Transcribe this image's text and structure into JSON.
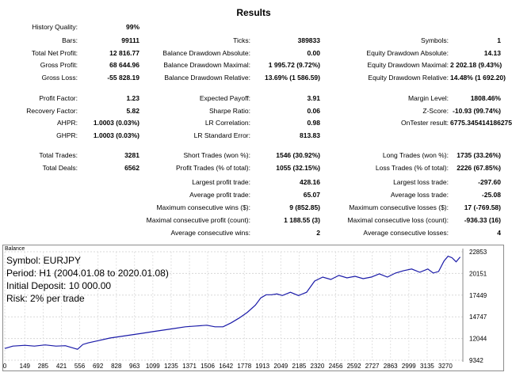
{
  "report": {
    "title": "Results",
    "col1": [
      {
        "label": "History Quality:",
        "value": "99%"
      },
      {
        "label": "Bars:",
        "value": "99111"
      },
      {
        "label": "Total Net Profit:",
        "value": "12 816.77"
      },
      {
        "label": "Gross Profit:",
        "value": "68 644.96"
      },
      {
        "label": "Gross Loss:",
        "value": "-55 828.19"
      },
      {
        "label": "Profit Factor:",
        "value": "1.23"
      },
      {
        "label": "Recovery Factor:",
        "value": "5.82"
      },
      {
        "label": "AHPR:",
        "value": "1.0003 (0.03%)"
      },
      {
        "label": "GHPR:",
        "value": "1.0003 (0.03%)"
      },
      {
        "label": "Total Trades:",
        "value": "3281"
      },
      {
        "label": "Total Deals:",
        "value": "6562"
      }
    ],
    "col2": [
      {
        "label": "Ticks:",
        "value": "389833"
      },
      {
        "label": "Balance Drawdown Absolute:",
        "value": "0.00"
      },
      {
        "label": "Balance Drawdown Maximal:",
        "value": "1 995.72 (9.72%)"
      },
      {
        "label": "Balance Drawdown Relative:",
        "value": "13.69% (1 586.59)"
      },
      {
        "label": "Expected Payoff:",
        "value": "3.91"
      },
      {
        "label": "Sharpe Ratio:",
        "value": "0.06"
      },
      {
        "label": "LR Correlation:",
        "value": "0.98"
      },
      {
        "label": "LR Standard Error:",
        "value": "813.83"
      },
      {
        "label": "Short Trades (won %):",
        "value": "1546 (30.92%)"
      },
      {
        "label": "Profit Trades (% of total):",
        "value": "1055 (32.15%)"
      },
      {
        "label": "Largest profit trade:",
        "value": "428.16"
      },
      {
        "label": "Average profit trade:",
        "value": "65.07"
      },
      {
        "label": "Maximum consecutive wins ($):",
        "value": "9 (852.85)"
      },
      {
        "label": "Maximal consecutive profit (count):",
        "value": "1 188.55 (3)"
      },
      {
        "label": "Average consecutive wins:",
        "value": "2"
      }
    ],
    "col3": [
      {
        "label": "Symbols:",
        "value": "1"
      },
      {
        "label": "Equity Drawdown Absolute:",
        "value": "14.13"
      },
      {
        "label": "Equity Drawdown Maximal:",
        "value": "2 202.18 (9.43%)"
      },
      {
        "label": "Equity Drawdown Relative:",
        "value": "14.48% (1 692.20)"
      },
      {
        "label": "Margin Level:",
        "value": "1808.46%"
      },
      {
        "label": "Z-Score:",
        "value": "-10.93 (99.74%)"
      },
      {
        "label": "OnTester result:",
        "value": "6775.345414186275"
      },
      {
        "label": "Long Trades (won %):",
        "value": "1735 (33.26%)"
      },
      {
        "label": "Loss Trades (% of total):",
        "value": "2226 (67.85%)"
      },
      {
        "label": "Largest loss trade:",
        "value": "-297.60"
      },
      {
        "label": "Average loss trade:",
        "value": "-25.08"
      },
      {
        "label": "Maximum consecutive losses ($):",
        "value": "17 (-769.58)"
      },
      {
        "label": "Maximal consecutive loss (count):",
        "value": "-936.33 (16)"
      },
      {
        "label": "Average consecutive losses:",
        "value": "4"
      }
    ]
  },
  "chart_info": {
    "symbol": "Symbol: EURJPY",
    "period": "Period: H1 (2004.01.08 to 2020.01.08)",
    "deposit": "Initial Deposit: 10 000.00",
    "risk": "Risk: 2% per trade"
  },
  "chart_data": {
    "type": "line",
    "title": "Balance",
    "line_color": "#1a1aa8",
    "x_ticks": [
      "0",
      "149",
      "285",
      "421",
      "556",
      "692",
      "828",
      "963",
      "1099",
      "1235",
      "1371",
      "1506",
      "1642",
      "1778",
      "1913",
      "2049",
      "2185",
      "2320",
      "2456",
      "2592",
      "2727",
      "2863",
      "2999",
      "3135",
      "3270"
    ],
    "y_ticks": [
      "22853",
      "20151",
      "17449",
      "14747",
      "12044",
      "9342"
    ],
    "y_axis_position": "right",
    "xlim": [
      0,
      3400
    ],
    "ylim": [
      9342,
      22853
    ],
    "series": [
      {
        "x": [
          0,
          60,
          150,
          220,
          300,
          380,
          450,
          500,
          540,
          580,
          620,
          700,
          780,
          860,
          940,
          1020,
          1100,
          1180,
          1260,
          1340,
          1420,
          1500,
          1560,
          1620,
          1680,
          1740,
          1800,
          1860,
          1900,
          1940,
          1980,
          2020,
          2060,
          2120,
          2180,
          2240,
          2300,
          2360,
          2420,
          2480,
          2540,
          2600,
          2660,
          2720,
          2780,
          2840,
          2900,
          2960,
          3020,
          3080,
          3140,
          3180,
          3220,
          3260,
          3290,
          3320,
          3350,
          3380
        ],
        "y": [
          10800,
          11100,
          11200,
          11100,
          11250,
          11100,
          11150,
          10900,
          10700,
          11300,
          11500,
          11800,
          12100,
          12300,
          12500,
          12700,
          12900,
          13100,
          13300,
          13500,
          13600,
          13700,
          13500,
          13500,
          14000,
          14600,
          15300,
          16200,
          17100,
          17500,
          17500,
          17600,
          17400,
          17800,
          17400,
          17800,
          19200,
          19700,
          19400,
          19900,
          19600,
          19800,
          19500,
          19700,
          20100,
          19700,
          20200,
          20500,
          20700,
          20300,
          20700,
          20200,
          20400,
          21700,
          22300,
          22100,
          21600,
          22200
        ]
      }
    ]
  }
}
